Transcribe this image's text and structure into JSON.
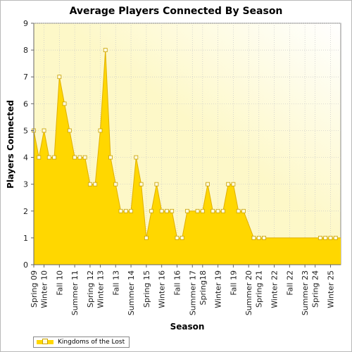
{
  "chart_data": {
    "type": "area",
    "title": "Average Players Connected By Season",
    "xlabel": "Season",
    "ylabel": "Players Connected",
    "ylim": [
      0,
      9
    ],
    "yticks": [
      0,
      1,
      2,
      3,
      4,
      5,
      6,
      7,
      8,
      9
    ],
    "grid": true,
    "legend_position": "bottom-left",
    "x_tick_labels": [
      "Spring 09",
      "Winter 10",
      "Fall 10",
      "Summer 11",
      "Spring 12",
      "Winter 13",
      "Fall 13",
      "Summer 14",
      "Spring 15",
      "Winter 16",
      "Fall 16",
      "Summer 17",
      "Spring18",
      "Winter 19",
      "Fall 19",
      "Summer 20",
      "Spring 21",
      "Winter 22",
      "Fall 22",
      "Summer 23",
      "Spring 24",
      "Winter 25"
    ],
    "x_tick_positions": [
      0,
      2,
      5,
      8,
      11,
      13,
      16,
      19,
      22,
      25,
      28,
      31,
      33,
      36,
      39,
      42,
      44,
      47,
      50,
      53,
      55,
      58
    ],
    "x_count": 60,
    "colors": {
      "fill": "#ffd700",
      "stroke": "#e0b000",
      "marker_fill": "#fffbe0",
      "marker_stroke": "#c8a000",
      "plot_bg_top": "#fdf8c8",
      "plot_bg_bottom": "#ffffff"
    },
    "series": [
      {
        "name": "Kingdoms of the Lost",
        "points": [
          [
            0,
            5
          ],
          [
            1,
            4
          ],
          [
            2,
            5
          ],
          [
            3,
            4
          ],
          [
            4,
            4
          ],
          [
            5,
            7
          ],
          [
            6,
            6
          ],
          [
            7,
            5
          ],
          [
            8,
            4
          ],
          [
            9,
            4
          ],
          [
            10,
            4
          ],
          [
            11,
            3
          ],
          [
            12,
            3
          ],
          [
            13,
            5
          ],
          [
            14,
            8
          ],
          [
            15,
            4
          ],
          [
            16,
            3
          ],
          [
            17,
            2
          ],
          [
            18,
            2
          ],
          [
            19,
            2
          ],
          [
            20,
            4
          ],
          [
            21,
            3
          ],
          [
            22,
            1
          ],
          [
            23,
            2
          ],
          [
            24,
            3
          ],
          [
            25,
            2
          ],
          [
            26,
            2
          ],
          [
            27,
            2
          ],
          [
            28,
            1
          ],
          [
            29,
            1
          ],
          [
            30,
            2
          ],
          [
            32,
            2
          ],
          [
            33,
            2
          ],
          [
            34,
            3
          ],
          [
            35,
            2
          ],
          [
            36,
            2
          ],
          [
            37,
            2
          ],
          [
            38,
            3
          ],
          [
            39,
            3
          ],
          [
            40,
            2
          ],
          [
            41,
            2
          ],
          [
            43,
            1
          ],
          [
            44,
            1
          ],
          [
            45,
            1
          ],
          [
            56,
            1
          ],
          [
            57,
            1
          ],
          [
            58,
            1
          ],
          [
            59,
            1
          ]
        ],
        "line_to": [
          [
            60,
            1
          ]
        ]
      }
    ]
  }
}
